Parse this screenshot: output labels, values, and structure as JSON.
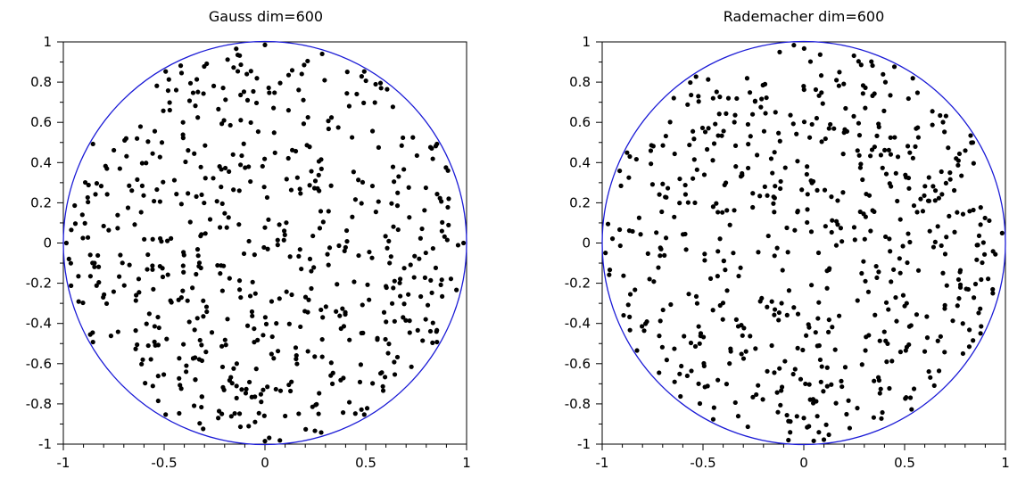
{
  "colors": {
    "circle": "#1a1ad6",
    "points": "#000000",
    "axis": "#000000",
    "background": "#ffffff"
  },
  "chart_data": [
    {
      "type": "scatter",
      "title": "Gauss dim=600",
      "xlabel": "",
      "ylabel": "",
      "xlim": [
        -1,
        1
      ],
      "ylim": [
        -1,
        1
      ],
      "xticks": [
        "-1",
        "-0.5",
        "0",
        "0.5",
        "1"
      ],
      "yticks": [
        "1",
        "0.8",
        "0.6",
        "0.4",
        "0.2",
        "0",
        "-0.2",
        "-0.4",
        "-0.6",
        "-0.8",
        "-1"
      ],
      "grid": false,
      "overlay": {
        "shape": "unit-circle",
        "radius": 1,
        "color": "#1a1ad6"
      },
      "point_count": 600,
      "seed": 7
    },
    {
      "type": "scatter",
      "title": "Rademacher dim=600",
      "xlabel": "",
      "ylabel": "",
      "xlim": [
        -1,
        1
      ],
      "ylim": [
        -1,
        1
      ],
      "xticks": [
        "-1",
        "-0.5",
        "0",
        "0.5",
        "1"
      ],
      "yticks": [
        "1",
        "0.8",
        "0.6",
        "0.4",
        "0.2",
        "0",
        "-0.2",
        "-0.4",
        "-0.6",
        "-0.8",
        "-1"
      ],
      "grid": false,
      "overlay": {
        "shape": "unit-circle",
        "radius": 1,
        "color": "#1a1ad6"
      },
      "point_count": 600,
      "seed": 13
    }
  ]
}
